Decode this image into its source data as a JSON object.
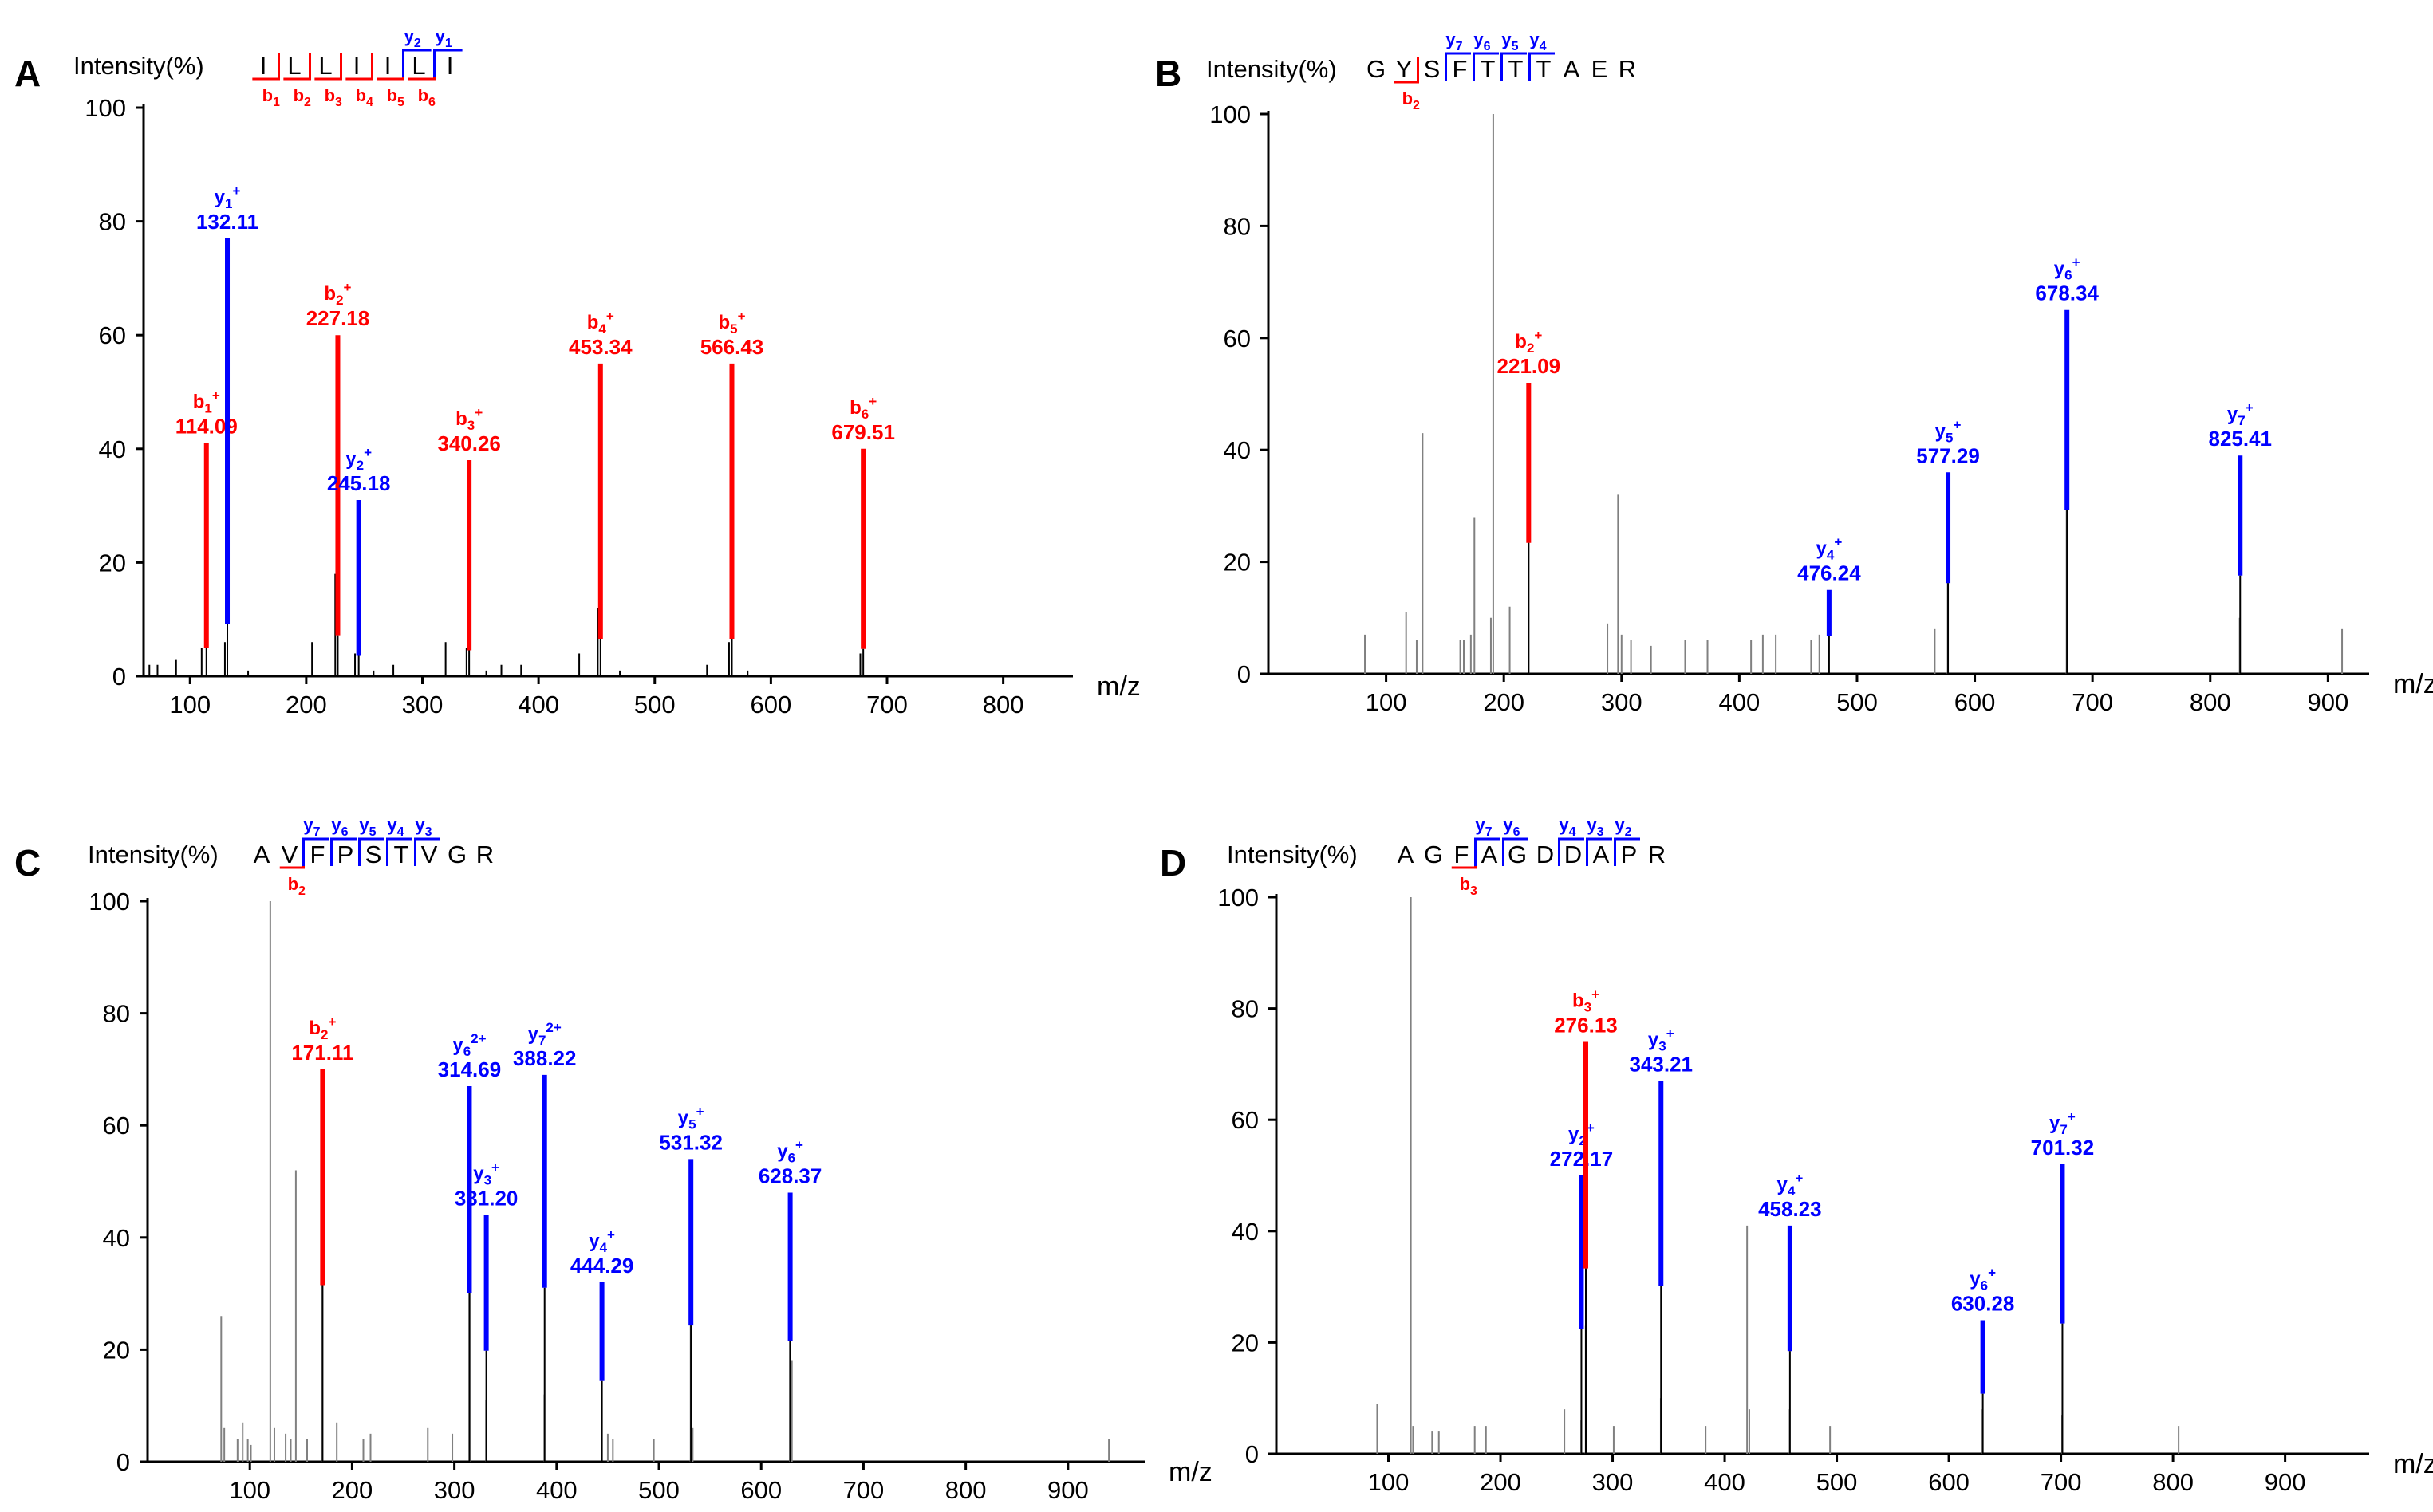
{
  "colors": {
    "b_ion": "#ff0000",
    "y_ion": "#0000ff",
    "other": "#000000",
    "gray": "#808080"
  },
  "chart_data": [
    {
      "panel": "A",
      "type": "bar",
      "title": "Intensity(%)",
      "sequence": [
        "I",
        "L",
        "L",
        "I",
        "I",
        "L",
        "I"
      ],
      "xlabel": "m/z",
      "ylabel": "Intensity(%)",
      "xlim": [
        60,
        860
      ],
      "ylim": [
        0,
        100
      ],
      "xticks": [
        100,
        200,
        300,
        400,
        500,
        600,
        700,
        800
      ],
      "yticks": [
        0,
        20,
        40,
        60,
        80,
        100
      ],
      "b_fragments": [
        1,
        2,
        3,
        4,
        5,
        6
      ],
      "y_fragments": [
        2,
        1
      ],
      "labeled_peaks": [
        {
          "mz": 114.09,
          "intensity": 41,
          "ion": "b",
          "num": "1",
          "charge": "+",
          "label": "114.09"
        },
        {
          "mz": 132.11,
          "intensity": 77,
          "ion": "y",
          "num": "1",
          "charge": "+",
          "label": "132.11"
        },
        {
          "mz": 227.18,
          "intensity": 60,
          "ion": "b",
          "num": "2",
          "charge": "+",
          "label": "227.18"
        },
        {
          "mz": 245.18,
          "intensity": 31,
          "ion": "y",
          "num": "2",
          "charge": "+",
          "label": "245.18"
        },
        {
          "mz": 340.26,
          "intensity": 38,
          "ion": "b",
          "num": "3",
          "charge": "+",
          "label": "340.26"
        },
        {
          "mz": 453.34,
          "intensity": 55,
          "ion": "b",
          "num": "4",
          "charge": "+",
          "label": "453.34"
        },
        {
          "mz": 566.43,
          "intensity": 55,
          "ion": "b",
          "num": "5",
          "charge": "+",
          "label": "566.43"
        },
        {
          "mz": 679.51,
          "intensity": 40,
          "ion": "b",
          "num": "6",
          "charge": "+",
          "label": "679.51"
        }
      ],
      "other_peaks": [
        {
          "mz": 65,
          "intensity": 2
        },
        {
          "mz": 72,
          "intensity": 2
        },
        {
          "mz": 88,
          "intensity": 3
        },
        {
          "mz": 110,
          "intensity": 5
        },
        {
          "mz": 130,
          "intensity": 6
        },
        {
          "mz": 150,
          "intensity": 1
        },
        {
          "mz": 205,
          "intensity": 6
        },
        {
          "mz": 225,
          "intensity": 18
        },
        {
          "mz": 242,
          "intensity": 4
        },
        {
          "mz": 258,
          "intensity": 1
        },
        {
          "mz": 275,
          "intensity": 2
        },
        {
          "mz": 320,
          "intensity": 6
        },
        {
          "mz": 338,
          "intensity": 5
        },
        {
          "mz": 355,
          "intensity": 1
        },
        {
          "mz": 368,
          "intensity": 2
        },
        {
          "mz": 385,
          "intensity": 2
        },
        {
          "mz": 435,
          "intensity": 4
        },
        {
          "mz": 451,
          "intensity": 12
        },
        {
          "mz": 470,
          "intensity": 1
        },
        {
          "mz": 545,
          "intensity": 2
        },
        {
          "mz": 564,
          "intensity": 6
        },
        {
          "mz": 580,
          "intensity": 1
        },
        {
          "mz": 677,
          "intensity": 4
        }
      ]
    },
    {
      "panel": "B",
      "type": "bar",
      "title": "Intensity(%)",
      "sequence": [
        "G",
        "Y",
        "S",
        "F",
        "T",
        "T",
        "T",
        "A",
        "E",
        "R"
      ],
      "xlabel": "m/z",
      "ylabel": "Intensity(%)",
      "xlim": [
        0,
        935
      ],
      "ylim": [
        0,
        100
      ],
      "xticks": [
        100,
        200,
        300,
        400,
        500,
        600,
        700,
        800,
        900
      ],
      "yticks": [
        0,
        20,
        40,
        60,
        80,
        100
      ],
      "b_fragments": [
        2
      ],
      "y_fragments": [
        7,
        6,
        5,
        4
      ],
      "labeled_peaks": [
        {
          "mz": 221.09,
          "intensity": 52,
          "ion": "b",
          "num": "2",
          "charge": "+",
          "label": "221.09"
        },
        {
          "mz": 476.24,
          "intensity": 15,
          "ion": "y",
          "num": "4",
          "charge": "+",
          "label": "476.24"
        },
        {
          "mz": 577.29,
          "intensity": 36,
          "ion": "y",
          "num": "5",
          "charge": "+",
          "label": "577.29"
        },
        {
          "mz": 678.34,
          "intensity": 65,
          "ion": "y",
          "num": "6",
          "charge": "+",
          "label": "678.34"
        },
        {
          "mz": 825.41,
          "intensity": 39,
          "ion": "y",
          "num": "7",
          "charge": "+",
          "label": "825.41"
        }
      ],
      "other_peaks": [
        {
          "mz": 82,
          "intensity": 7
        },
        {
          "mz": 117,
          "intensity": 11
        },
        {
          "mz": 126,
          "intensity": 6
        },
        {
          "mz": 131,
          "intensity": 43
        },
        {
          "mz": 163,
          "intensity": 6
        },
        {
          "mz": 166,
          "intensity": 6
        },
        {
          "mz": 172,
          "intensity": 7
        },
        {
          "mz": 175,
          "intensity": 28
        },
        {
          "mz": 189,
          "intensity": 10
        },
        {
          "mz": 191,
          "intensity": 100
        },
        {
          "mz": 205,
          "intensity": 12
        },
        {
          "mz": 221,
          "intensity": 32
        },
        {
          "mz": 288,
          "intensity": 9
        },
        {
          "mz": 297,
          "intensity": 32
        },
        {
          "mz": 300,
          "intensity": 7
        },
        {
          "mz": 308,
          "intensity": 6
        },
        {
          "mz": 325,
          "intensity": 5
        },
        {
          "mz": 354,
          "intensity": 6
        },
        {
          "mz": 373,
          "intensity": 6
        },
        {
          "mz": 410,
          "intensity": 6
        },
        {
          "mz": 420,
          "intensity": 7
        },
        {
          "mz": 431,
          "intensity": 7
        },
        {
          "mz": 461,
          "intensity": 6
        },
        {
          "mz": 468,
          "intensity": 7
        },
        {
          "mz": 476,
          "intensity": 7
        },
        {
          "mz": 566,
          "intensity": 8
        },
        {
          "mz": 577,
          "intensity": 23
        },
        {
          "mz": 678,
          "intensity": 37
        },
        {
          "mz": 825,
          "intensity": 10
        },
        {
          "mz": 912,
          "intensity": 8
        }
      ]
    },
    {
      "panel": "C",
      "type": "bar",
      "title": "Intensity(%)",
      "sequence": [
        "A",
        "V",
        "F",
        "P",
        "S",
        "T",
        "V",
        "G",
        "R"
      ],
      "xlabel": "m/z",
      "ylabel": "Intensity(%)",
      "xlim": [
        0,
        975
      ],
      "ylim": [
        0,
        100
      ],
      "xticks": [
        100,
        200,
        300,
        400,
        500,
        600,
        700,
        800,
        900
      ],
      "yticks": [
        0,
        20,
        40,
        60,
        80,
        100
      ],
      "b_fragments": [
        2
      ],
      "y_fragments": [
        7,
        6,
        5,
        4,
        3
      ],
      "labeled_peaks": [
        {
          "mz": 171.11,
          "intensity": 70,
          "ion": "b",
          "num": "2",
          "charge": "+",
          "label": "171.11"
        },
        {
          "mz": 314.69,
          "intensity": 67,
          "ion": "y",
          "num": "6",
          "charge": "2+",
          "label": "314.69"
        },
        {
          "mz": 331.2,
          "intensity": 44,
          "ion": "y",
          "num": "3",
          "charge": "+",
          "label": "331.20"
        },
        {
          "mz": 388.22,
          "intensity": 69,
          "ion": "y",
          "num": "7",
          "charge": "2+",
          "label": "388.22"
        },
        {
          "mz": 444.29,
          "intensity": 32,
          "ion": "y",
          "num": "4",
          "charge": "+",
          "label": "444.29"
        },
        {
          "mz": 531.32,
          "intensity": 54,
          "ion": "y",
          "num": "5",
          "charge": "+",
          "label": "531.32"
        },
        {
          "mz": 628.37,
          "intensity": 48,
          "ion": "y",
          "num": "6",
          "charge": "+",
          "label": "628.37"
        }
      ],
      "other_peaks": [
        {
          "mz": 72,
          "intensity": 26
        },
        {
          "mz": 75,
          "intensity": 6
        },
        {
          "mz": 88,
          "intensity": 4
        },
        {
          "mz": 93,
          "intensity": 7
        },
        {
          "mz": 98,
          "intensity": 4
        },
        {
          "mz": 101,
          "intensity": 3
        },
        {
          "mz": 120,
          "intensity": 100
        },
        {
          "mz": 124,
          "intensity": 6
        },
        {
          "mz": 135,
          "intensity": 5
        },
        {
          "mz": 140,
          "intensity": 4
        },
        {
          "mz": 145,
          "intensity": 52
        },
        {
          "mz": 156,
          "intensity": 4
        },
        {
          "mz": 171,
          "intensity": 34
        },
        {
          "mz": 185,
          "intensity": 7
        },
        {
          "mz": 211,
          "intensity": 4
        },
        {
          "mz": 218,
          "intensity": 5
        },
        {
          "mz": 274,
          "intensity": 6
        },
        {
          "mz": 298,
          "intensity": 5
        },
        {
          "mz": 315,
          "intensity": 61
        },
        {
          "mz": 331,
          "intensity": 11
        },
        {
          "mz": 388,
          "intensity": 12
        },
        {
          "mz": 444,
          "intensity": 7
        },
        {
          "mz": 450,
          "intensity": 5
        },
        {
          "mz": 455,
          "intensity": 4
        },
        {
          "mz": 495,
          "intensity": 4
        },
        {
          "mz": 531,
          "intensity": 27
        },
        {
          "mz": 533,
          "intensity": 6
        },
        {
          "mz": 628,
          "intensity": 37
        },
        {
          "mz": 630,
          "intensity": 18
        },
        {
          "mz": 940,
          "intensity": 4
        }
      ]
    },
    {
      "panel": "D",
      "type": "bar",
      "title": "Intensity(%)",
      "sequence": [
        "A",
        "G",
        "F",
        "A",
        "G",
        "D",
        "D",
        "A",
        "P",
        "R"
      ],
      "xlabel": "m/z",
      "ylabel": "Intensity(%)",
      "xlim": [
        0,
        975
      ],
      "ylim": [
        0,
        100
      ],
      "xticks": [
        100,
        200,
        300,
        400,
        500,
        600,
        700,
        800,
        900
      ],
      "yticks": [
        0,
        20,
        40,
        60,
        80,
        100
      ],
      "b_fragments": [
        3
      ],
      "y_fragments": [
        7,
        6,
        4,
        3,
        2
      ],
      "labeled_peaks": [
        {
          "mz": 272.17,
          "intensity": 50,
          "ion": "y",
          "num": "2",
          "charge": "+",
          "label": "272.17"
        },
        {
          "mz": 276.13,
          "intensity": 74,
          "ion": "b",
          "num": "3",
          "charge": "+",
          "label": "276.13"
        },
        {
          "mz": 343.21,
          "intensity": 67,
          "ion": "y",
          "num": "3",
          "charge": "+",
          "label": "343.21"
        },
        {
          "mz": 458.23,
          "intensity": 41,
          "ion": "y",
          "num": "4",
          "charge": "+",
          "label": "458.23"
        },
        {
          "mz": 630.28,
          "intensity": 24,
          "ion": "y",
          "num": "6",
          "charge": "+",
          "label": "630.28"
        },
        {
          "mz": 701.32,
          "intensity": 52,
          "ion": "y",
          "num": "7",
          "charge": "+",
          "label": "701.32"
        }
      ],
      "other_peaks": [
        {
          "mz": 90,
          "intensity": 9
        },
        {
          "mz": 120,
          "intensity": 100
        },
        {
          "mz": 122,
          "intensity": 5
        },
        {
          "mz": 139,
          "intensity": 4
        },
        {
          "mz": 145,
          "intensity": 4
        },
        {
          "mz": 177,
          "intensity": 5
        },
        {
          "mz": 187,
          "intensity": 5
        },
        {
          "mz": 257,
          "intensity": 8
        },
        {
          "mz": 272,
          "intensity": 6
        },
        {
          "mz": 276,
          "intensity": 23
        },
        {
          "mz": 301,
          "intensity": 5
        },
        {
          "mz": 343,
          "intensity": 10
        },
        {
          "mz": 383,
          "intensity": 5
        },
        {
          "mz": 420,
          "intensity": 41
        },
        {
          "mz": 422,
          "intensity": 8
        },
        {
          "mz": 458,
          "intensity": 8
        },
        {
          "mz": 494,
          "intensity": 5
        },
        {
          "mz": 630,
          "intensity": 8
        },
        {
          "mz": 701,
          "intensity": 7
        },
        {
          "mz": 805,
          "intensity": 5
        }
      ]
    }
  ]
}
